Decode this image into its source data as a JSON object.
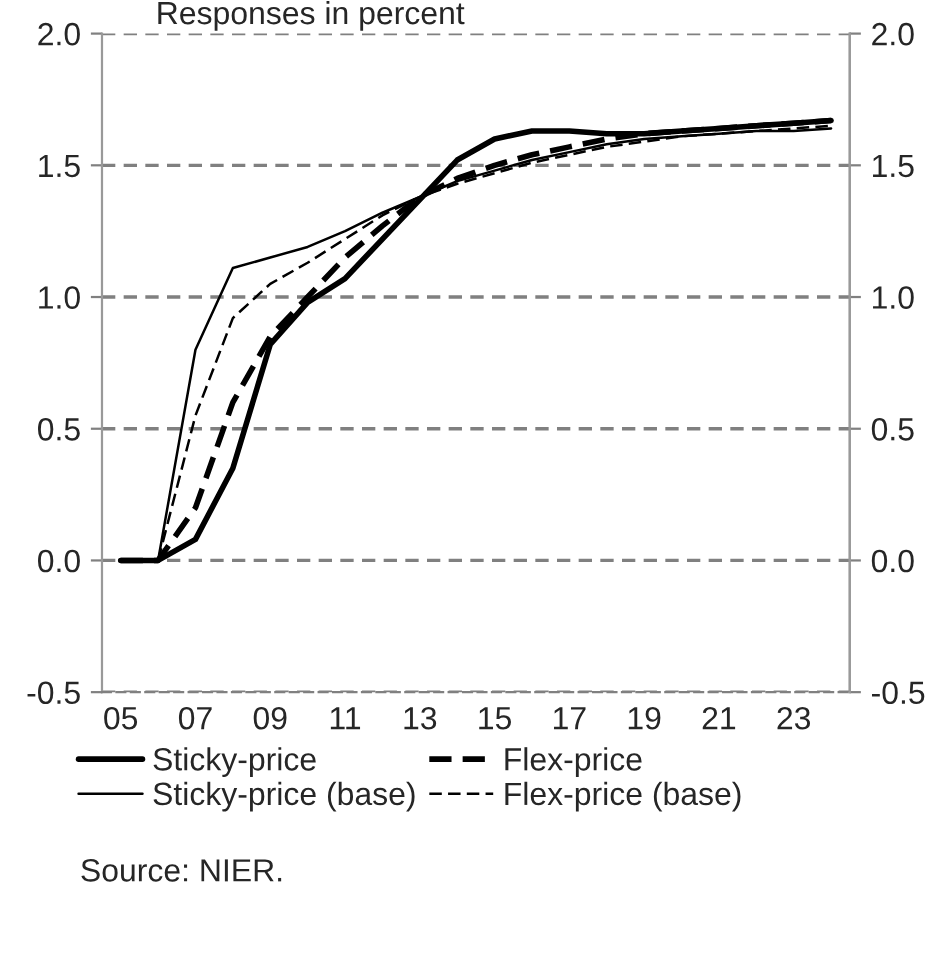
{
  "chart_data": {
    "type": "line",
    "title": "Responses in percent",
    "categories": [
      "05",
      null,
      "07",
      null,
      "09",
      null,
      "11",
      null,
      "13",
      null,
      "15",
      null,
      "17",
      null,
      "19",
      null,
      "21",
      null,
      "23",
      null
    ],
    "series": [
      {
        "name": "Sticky-price",
        "color": "#000000",
        "line_style": "solid",
        "values": [
          0,
          0,
          0.08,
          0.35,
          0.82,
          0.98,
          1.07,
          1.22,
          1.37,
          1.52,
          1.6,
          1.63,
          1.63,
          1.62,
          1.62,
          1.63,
          1.64,
          1.65,
          1.66,
          1.67
        ]
      },
      {
        "name": "Sticky-price (base)",
        "color": "#000000",
        "line_style": "solid",
        "values": [
          0,
          0,
          0.8,
          1.11,
          1.15,
          1.19,
          1.25,
          1.32,
          1.38,
          1.44,
          1.48,
          1.52,
          1.55,
          1.58,
          1.6,
          1.61,
          1.62,
          1.63,
          1.63,
          1.64
        ]
      },
      {
        "name": "Flex-price",
        "color": "#000000",
        "line_style": "dashed",
        "values": [
          0,
          0,
          0.2,
          0.6,
          0.85,
          1.0,
          1.15,
          1.27,
          1.38,
          1.45,
          1.5,
          1.54,
          1.57,
          1.6,
          1.62,
          1.63,
          1.64,
          1.65,
          1.66,
          1.67
        ]
      },
      {
        "name": "Flex-price (base)",
        "color": "#000000",
        "line_style": "dashed",
        "values": [
          0,
          0,
          0.55,
          0.92,
          1.05,
          1.13,
          1.22,
          1.31,
          1.38,
          1.43,
          1.47,
          1.51,
          1.54,
          1.57,
          1.59,
          1.61,
          1.62,
          1.63,
          1.64,
          1.65
        ]
      }
    ],
    "ylim": [
      -0.5,
      2.0
    ],
    "yticks": [
      -0.5,
      {
        "value": 0,
        "label": "0.0"
      },
      0.5,
      {
        "value": 1,
        "label": "1.0"
      },
      1.5,
      {
        "value": 2,
        "label": "2.0"
      }
    ],
    "y2lim": [
      -0.5,
      2.0
    ],
    "y2ticks": [
      -0.5,
      {
        "value": 0,
        "label": "0.0"
      },
      0.5,
      {
        "value": 1,
        "label": "1.0"
      },
      1.5,
      {
        "value": 2,
        "label": "2.0"
      }
    ],
    "grid": "y",
    "legend": "bottom",
    "annotations": [
      "Source: NIER."
    ]
  }
}
